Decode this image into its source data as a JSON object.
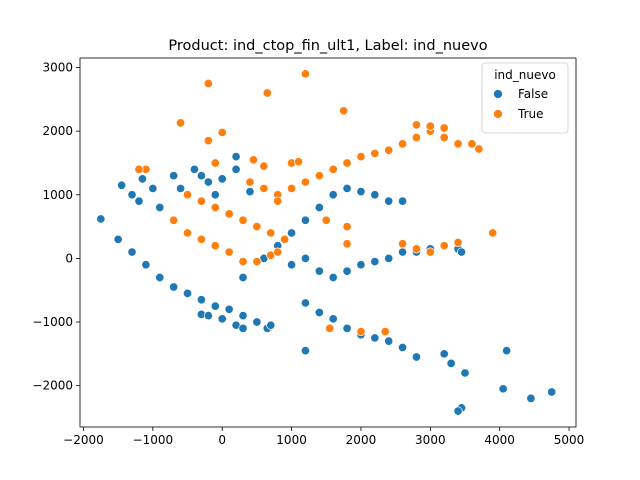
{
  "chart_data": {
    "type": "scatter",
    "title": "Product: ind_ctop_fin_ult1, Label: ind_nuevo",
    "xlabel": "",
    "ylabel": "",
    "xlim": [
      -2050,
      5100
    ],
    "ylim": [
      -2650,
      3150
    ],
    "xticks": [
      -2000,
      -1000,
      0,
      1000,
      2000,
      3000,
      4000,
      5000
    ],
    "xtick_labels": [
      "−2000",
      "−1000",
      "0",
      "1000",
      "2000",
      "3000",
      "4000",
      "5000"
    ],
    "yticks": [
      -2000,
      -1000,
      0,
      1000,
      2000,
      3000
    ],
    "ytick_labels": [
      "−2000",
      "−1000",
      "0",
      "1000",
      "2000",
      "3000"
    ],
    "grid": false,
    "legend": {
      "title": "ind_nuevo",
      "placement": "top-right"
    },
    "series": [
      {
        "name": "False",
        "color": "#1f77b4",
        "points": [
          [
            -1750,
            620
          ],
          [
            -1450,
            1150
          ],
          [
            -1300,
            1000
          ],
          [
            -1200,
            900
          ],
          [
            -1150,
            1250
          ],
          [
            -1000,
            1100
          ],
          [
            -900,
            800
          ],
          [
            -700,
            1300
          ],
          [
            -600,
            1100
          ],
          [
            -400,
            1400
          ],
          [
            -300,
            1300
          ],
          [
            -200,
            1200
          ],
          [
            -100,
            1000
          ],
          [
            0,
            1250
          ],
          [
            200,
            1400
          ],
          [
            200,
            1600
          ],
          [
            400,
            1050
          ],
          [
            -1500,
            300
          ],
          [
            -1300,
            100
          ],
          [
            -1100,
            -100
          ],
          [
            -900,
            -300
          ],
          [
            -700,
            -450
          ],
          [
            -500,
            -550
          ],
          [
            -300,
            -650
          ],
          [
            -100,
            -750
          ],
          [
            100,
            -800
          ],
          [
            300,
            -900
          ],
          [
            -300,
            -880
          ],
          [
            -200,
            -900
          ],
          [
            0,
            -950
          ],
          [
            200,
            -1050
          ],
          [
            300,
            -1100
          ],
          [
            500,
            -1000
          ],
          [
            650,
            -1100
          ],
          [
            700,
            -1050
          ],
          [
            300,
            -300
          ],
          [
            600,
            0
          ],
          [
            800,
            200
          ],
          [
            1000,
            400
          ],
          [
            1200,
            600
          ],
          [
            1400,
            800
          ],
          [
            1600,
            1000
          ],
          [
            1800,
            1100
          ],
          [
            2000,
            1050
          ],
          [
            2200,
            1000
          ],
          [
            2400,
            900
          ],
          [
            2600,
            900
          ],
          [
            1000,
            -100
          ],
          [
            1200,
            0
          ],
          [
            1400,
            -200
          ],
          [
            1600,
            -300
          ],
          [
            1800,
            -200
          ],
          [
            2000,
            -100
          ],
          [
            2200,
            -50
          ],
          [
            2400,
            0
          ],
          [
            2600,
            100
          ],
          [
            2800,
            100
          ],
          [
            3000,
            150
          ],
          [
            3200,
            200
          ],
          [
            3400,
            150
          ],
          [
            1200,
            -700
          ],
          [
            1400,
            -850
          ],
          [
            1600,
            -950
          ],
          [
            1800,
            -1100
          ],
          [
            2000,
            -1200
          ],
          [
            2200,
            -1250
          ],
          [
            2400,
            -1300
          ],
          [
            2600,
            -1400
          ],
          [
            2800,
            -1550
          ],
          [
            3200,
            -1500
          ],
          [
            3300,
            -1650
          ],
          [
            3500,
            -1800
          ],
          [
            4100,
            -1450
          ],
          [
            4050,
            -2050
          ],
          [
            4450,
            -2200
          ],
          [
            4750,
            -2100
          ],
          [
            3450,
            -2350
          ],
          [
            3400,
            -2400
          ],
          [
            1200,
            -1450
          ],
          [
            3450,
            100
          ]
        ]
      },
      {
        "name": "True",
        "color": "#ff7f0e",
        "points": [
          [
            1200,
            2900
          ],
          [
            -200,
            2750
          ],
          [
            650,
            2600
          ],
          [
            1750,
            2320
          ],
          [
            -600,
            2130
          ],
          [
            0,
            1980
          ],
          [
            -200,
            1850
          ],
          [
            450,
            1550
          ],
          [
            600,
            1450
          ],
          [
            1000,
            1500
          ],
          [
            1100,
            1520
          ],
          [
            -1100,
            1400
          ],
          [
            -500,
            1000
          ],
          [
            -300,
            900
          ],
          [
            -100,
            800
          ],
          [
            100,
            700
          ],
          [
            300,
            600
          ],
          [
            500,
            500
          ],
          [
            700,
            400
          ],
          [
            900,
            300
          ],
          [
            -700,
            600
          ],
          [
            -500,
            400
          ],
          [
            -300,
            300
          ],
          [
            -100,
            200
          ],
          [
            100,
            100
          ],
          [
            300,
            -50
          ],
          [
            500,
            -50
          ],
          [
            700,
            50
          ],
          [
            800,
            100
          ],
          [
            400,
            1200
          ],
          [
            600,
            1100
          ],
          [
            800,
            1000
          ],
          [
            1000,
            1100
          ],
          [
            1200,
            1200
          ],
          [
            1400,
            1300
          ],
          [
            1600,
            1400
          ],
          [
            1800,
            1500
          ],
          [
            2000,
            1600
          ],
          [
            2200,
            1650
          ],
          [
            2400,
            1700
          ],
          [
            2600,
            1800
          ],
          [
            2800,
            1900
          ],
          [
            3000,
            2000
          ],
          [
            3200,
            1900
          ],
          [
            3400,
            1800
          ],
          [
            3600,
            1800
          ],
          [
            3700,
            1720
          ],
          [
            2800,
            2100
          ],
          [
            3000,
            2080
          ],
          [
            3200,
            2050
          ],
          [
            1500,
            600
          ],
          [
            1800,
            500
          ],
          [
            1800,
            230
          ],
          [
            2600,
            230
          ],
          [
            2800,
            150
          ],
          [
            3000,
            100
          ],
          [
            3200,
            200
          ],
          [
            3400,
            250
          ],
          [
            3900,
            400
          ],
          [
            -100,
            1500
          ],
          [
            2350,
            -1150
          ],
          [
            2000,
            -1150
          ],
          [
            1550,
            -1100
          ],
          [
            -1200,
            1400
          ],
          [
            800,
            900
          ]
        ]
      }
    ]
  }
}
